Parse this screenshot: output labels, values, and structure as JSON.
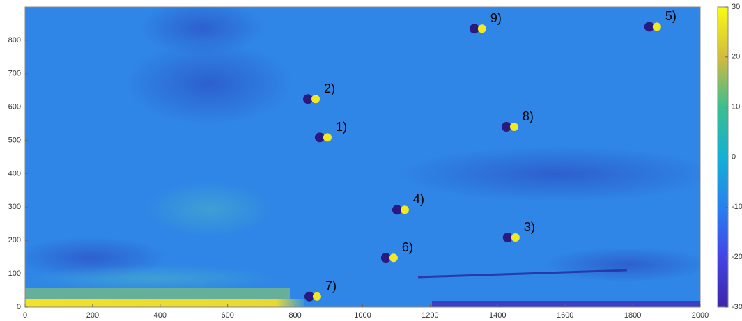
{
  "chart_data": {
    "type": "heatmap",
    "xlim": [
      0,
      2000
    ],
    "xticks": [
      0,
      200,
      400,
      600,
      800,
      1000,
      1200,
      1400,
      1600,
      1800,
      2000
    ],
    "ylim": [
      0,
      900
    ],
    "yticks": [
      0,
      100,
      200,
      300,
      400,
      500,
      600,
      700,
      800
    ],
    "clim": [
      -30,
      30
    ],
    "cticks": [
      -30,
      -20,
      -10,
      0,
      10,
      20,
      30
    ],
    "annotations": [
      {
        "text": "1)",
        "x": 937,
        "y": 538
      },
      {
        "text": "2)",
        "x": 902,
        "y": 653
      },
      {
        "text": "3)",
        "x": 1494,
        "y": 238
      },
      {
        "text": "4)",
        "x": 1166,
        "y": 321
      },
      {
        "text": "5)",
        "x": 1913,
        "y": 870
      },
      {
        "text": "6)",
        "x": 1133,
        "y": 177
      },
      {
        "text": "7)",
        "x": 906,
        "y": 61
      },
      {
        "text": "8)",
        "x": 1490,
        "y": 570
      },
      {
        "text": "9)",
        "x": 1395,
        "y": 864
      }
    ]
  }
}
